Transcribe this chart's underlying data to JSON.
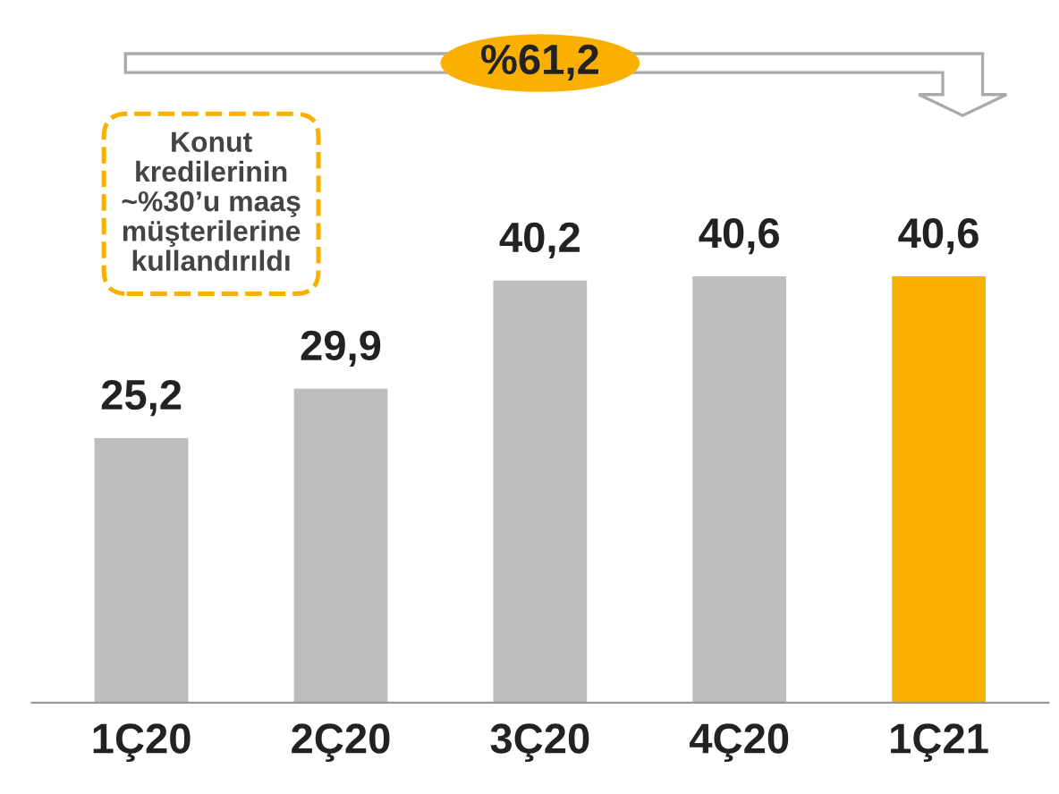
{
  "chart_data": {
    "type": "bar",
    "categories": [
      "1Ç20",
      "2Ç20",
      "3Ç20",
      "4Ç20",
      "1Ç21"
    ],
    "values": [
      25.2,
      29.9,
      40.2,
      40.6,
      40.6
    ],
    "value_labels": [
      "25,2",
      "29,9",
      "40,2",
      "40,6",
      "40,6"
    ],
    "colors": [
      "#bdbdbd",
      "#bdbdbd",
      "#bdbdbd",
      "#bdbdbd",
      "#f9b000"
    ],
    "annotations": [
      "%61,2",
      "Konut\nkredilerinin\n~%30’u maaş\nmüşterilerine\nkullandırıldı"
    ]
  }
}
